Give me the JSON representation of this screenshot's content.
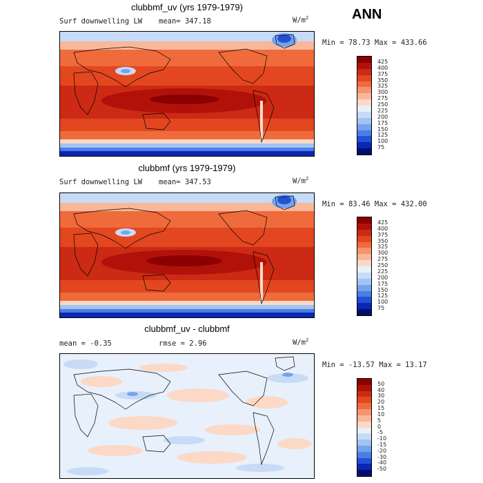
{
  "header": {
    "season": "ANN"
  },
  "panels": [
    {
      "title": "clubbmf_uv (yrs 1979-1979)",
      "left_label": "Surf downwelling LW",
      "stat1_label": "mean=",
      "stat1_value": "347.18",
      "stat2_label": "",
      "stat2_value": "",
      "units_base": "W/m",
      "units_exp": "2",
      "min_label": "Min =",
      "min_value": "78.73",
      "max_label": "Max =",
      "max_value": "433.66",
      "colorbar": {
        "levels": [
          "425",
          "400",
          "375",
          "350",
          "325",
          "300",
          "275",
          "250",
          "225",
          "200",
          "175",
          "150",
          "125",
          "100",
          "75"
        ],
        "colors": [
          "#8b0000",
          "#b0120a",
          "#cc2a14",
          "#e2471f",
          "#ef6b3c",
          "#f69470",
          "#f9b79a",
          "#fbd9c6",
          "#e8f0fb",
          "#c7dbf6",
          "#a2c4f1",
          "#74a2ec",
          "#4a7ee6",
          "#2450d6",
          "#0b26b3",
          "#000f6e"
        ]
      }
    },
    {
      "title": "clubbmf (yrs 1979-1979)",
      "left_label": "Surf downwelling LW",
      "stat1_label": "mean=",
      "stat1_value": "347.53",
      "stat2_label": "",
      "stat2_value": "",
      "units_base": "W/m",
      "units_exp": "2",
      "min_label": "Min =",
      "min_value": "83.46",
      "max_label": "Max =",
      "max_value": "432.00",
      "colorbar": {
        "levels": [
          "425",
          "400",
          "375",
          "350",
          "325",
          "300",
          "275",
          "250",
          "225",
          "200",
          "175",
          "150",
          "125",
          "100",
          "75"
        ],
        "colors": [
          "#8b0000",
          "#b0120a",
          "#cc2a14",
          "#e2471f",
          "#ef6b3c",
          "#f69470",
          "#f9b79a",
          "#fbd9c6",
          "#e8f0fb",
          "#c7dbf6",
          "#a2c4f1",
          "#74a2ec",
          "#4a7ee6",
          "#2450d6",
          "#0b26b3",
          "#000f6e"
        ]
      }
    },
    {
      "title": "clubbmf_uv - clubbmf",
      "left_label": "",
      "stat1_label": "mean =",
      "stat1_value": "-0.35",
      "stat2_label": "rmse =",
      "stat2_value": "2.96",
      "units_base": "W/m",
      "units_exp": "2",
      "min_label": "Min =",
      "min_value": "-13.57",
      "max_label": "Max =",
      "max_value": "13.17",
      "colorbar": {
        "levels": [
          "50",
          "40",
          "30",
          "20",
          "15",
          "10",
          "5",
          "0",
          "-5",
          "-10",
          "-15",
          "-20",
          "-30",
          "-40",
          "-50"
        ],
        "colors": [
          "#8b0000",
          "#b0120a",
          "#cc2a14",
          "#e2471f",
          "#ef6b3c",
          "#f69470",
          "#f9b79a",
          "#fbd9c6",
          "#e8f0fb",
          "#c7dbf6",
          "#a2c4f1",
          "#74a2ec",
          "#4a7ee6",
          "#2450d6",
          "#0b26b3",
          "#000f6e"
        ]
      }
    }
  ]
}
